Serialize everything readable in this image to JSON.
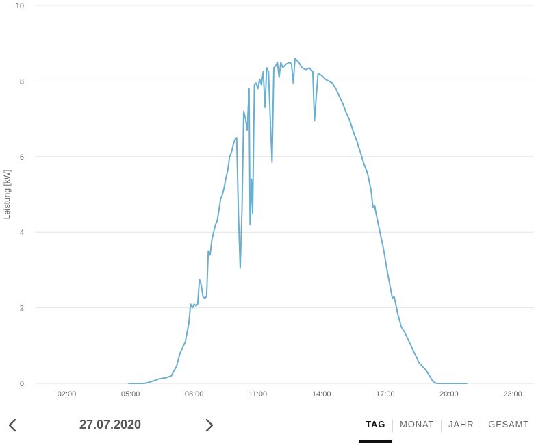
{
  "chart_data": {
    "type": "line",
    "title": "",
    "xlabel": "",
    "ylabel": "Leistung [kW]",
    "xlim": [
      "00:30",
      "24:00"
    ],
    "ylim": [
      0,
      10
    ],
    "x_ticks": [
      "02:00",
      "05:00",
      "08:00",
      "11:00",
      "14:00",
      "17:00",
      "20:00",
      "23:00"
    ],
    "y_ticks": [
      "0",
      "2",
      "4",
      "6",
      "8",
      "10"
    ],
    "grid": true,
    "color": "#6aafd0",
    "series": [
      {
        "name": "",
        "points": [
          [
            "04:55",
            0.0
          ],
          [
            "05:40",
            0.0
          ],
          [
            "06:00",
            0.05
          ],
          [
            "06:20",
            0.12
          ],
          [
            "06:40",
            0.15
          ],
          [
            "06:55",
            0.2
          ],
          [
            "07:10",
            0.45
          ],
          [
            "07:20",
            0.8
          ],
          [
            "07:35",
            1.1
          ],
          [
            "07:45",
            1.6
          ],
          [
            "07:50",
            2.1
          ],
          [
            "07:55",
            2.0
          ],
          [
            "08:00",
            2.1
          ],
          [
            "08:05",
            2.05
          ],
          [
            "08:10",
            2.1
          ],
          [
            "08:15",
            2.75
          ],
          [
            "08:20",
            2.6
          ],
          [
            "08:25",
            2.3
          ],
          [
            "08:30",
            2.25
          ],
          [
            "08:35",
            2.3
          ],
          [
            "08:40",
            3.5
          ],
          [
            "08:45",
            3.4
          ],
          [
            "08:50",
            3.8
          ],
          [
            "08:55",
            4.0
          ],
          [
            "09:00",
            4.2
          ],
          [
            "09:05",
            4.3
          ],
          [
            "09:10",
            4.6
          ],
          [
            "09:15",
            4.9
          ],
          [
            "09:20",
            5.0
          ],
          [
            "09:25",
            5.2
          ],
          [
            "09:30",
            5.45
          ],
          [
            "09:35",
            5.65
          ],
          [
            "09:40",
            6.0
          ],
          [
            "09:45",
            6.1
          ],
          [
            "09:50",
            6.3
          ],
          [
            "09:55",
            6.45
          ],
          [
            "10:00",
            6.5
          ],
          [
            "10:05",
            4.5
          ],
          [
            "10:10",
            3.05
          ],
          [
            "10:15",
            4.6
          ],
          [
            "10:20",
            7.2
          ],
          [
            "10:25",
            7.0
          ],
          [
            "10:30",
            6.7
          ],
          [
            "10:35",
            7.8
          ],
          [
            "10:38",
            4.2
          ],
          [
            "10:42",
            5.4
          ],
          [
            "10:45",
            4.5
          ],
          [
            "10:50",
            7.9
          ],
          [
            "10:55",
            7.95
          ],
          [
            "11:00",
            7.8
          ],
          [
            "11:05",
            8.05
          ],
          [
            "11:10",
            7.9
          ],
          [
            "11:15",
            8.25
          ],
          [
            "11:20",
            7.3
          ],
          [
            "11:25",
            8.35
          ],
          [
            "11:30",
            8.25
          ],
          [
            "11:35",
            7.0
          ],
          [
            "11:40",
            5.85
          ],
          [
            "11:45",
            8.35
          ],
          [
            "11:50",
            8.4
          ],
          [
            "11:55",
            8.5
          ],
          [
            "12:00",
            8.1
          ],
          [
            "12:05",
            8.5
          ],
          [
            "12:10",
            8.35
          ],
          [
            "12:20",
            8.45
          ],
          [
            "12:30",
            8.5
          ],
          [
            "12:35",
            8.45
          ],
          [
            "12:40",
            7.95
          ],
          [
            "12:45",
            8.6
          ],
          [
            "12:55",
            8.5
          ],
          [
            "13:05",
            8.35
          ],
          [
            "13:15",
            8.3
          ],
          [
            "13:25",
            8.35
          ],
          [
            "13:35",
            8.25
          ],
          [
            "13:40",
            6.95
          ],
          [
            "13:45",
            7.6
          ],
          [
            "13:50",
            8.2
          ],
          [
            "14:00",
            8.15
          ],
          [
            "14:10",
            8.05
          ],
          [
            "14:20",
            8.0
          ],
          [
            "14:30",
            7.95
          ],
          [
            "14:40",
            7.8
          ],
          [
            "14:50",
            7.6
          ],
          [
            "15:00",
            7.4
          ],
          [
            "15:10",
            7.15
          ],
          [
            "15:20",
            6.95
          ],
          [
            "15:30",
            6.65
          ],
          [
            "15:40",
            6.4
          ],
          [
            "15:50",
            6.1
          ],
          [
            "16:00",
            5.8
          ],
          [
            "16:10",
            5.55
          ],
          [
            "16:20",
            5.1
          ],
          [
            "16:25",
            4.65
          ],
          [
            "16:30",
            4.7
          ],
          [
            "16:35",
            4.45
          ],
          [
            "16:45",
            4.0
          ],
          [
            "16:55",
            3.55
          ],
          [
            "17:05",
            3.0
          ],
          [
            "17:15",
            2.5
          ],
          [
            "17:20",
            2.25
          ],
          [
            "17:25",
            2.3
          ],
          [
            "17:35",
            1.85
          ],
          [
            "17:45",
            1.5
          ],
          [
            "17:55",
            1.35
          ],
          [
            "18:05",
            1.15
          ],
          [
            "18:15",
            0.95
          ],
          [
            "18:25",
            0.75
          ],
          [
            "18:35",
            0.55
          ],
          [
            "18:45",
            0.45
          ],
          [
            "18:55",
            0.35
          ],
          [
            "19:05",
            0.2
          ],
          [
            "19:15",
            0.05
          ],
          [
            "19:25",
            0.0
          ],
          [
            "20:50",
            0.0
          ]
        ]
      }
    ]
  },
  "footer": {
    "prev_icon": "chevron-left-icon",
    "next_icon": "chevron-right-icon",
    "date": "27.07.2020",
    "tabs": [
      {
        "label": "TAG",
        "active": true
      },
      {
        "label": "MONAT",
        "active": false
      },
      {
        "label": "JAHR",
        "active": false
      },
      {
        "label": "GESAMT",
        "active": false
      }
    ]
  }
}
